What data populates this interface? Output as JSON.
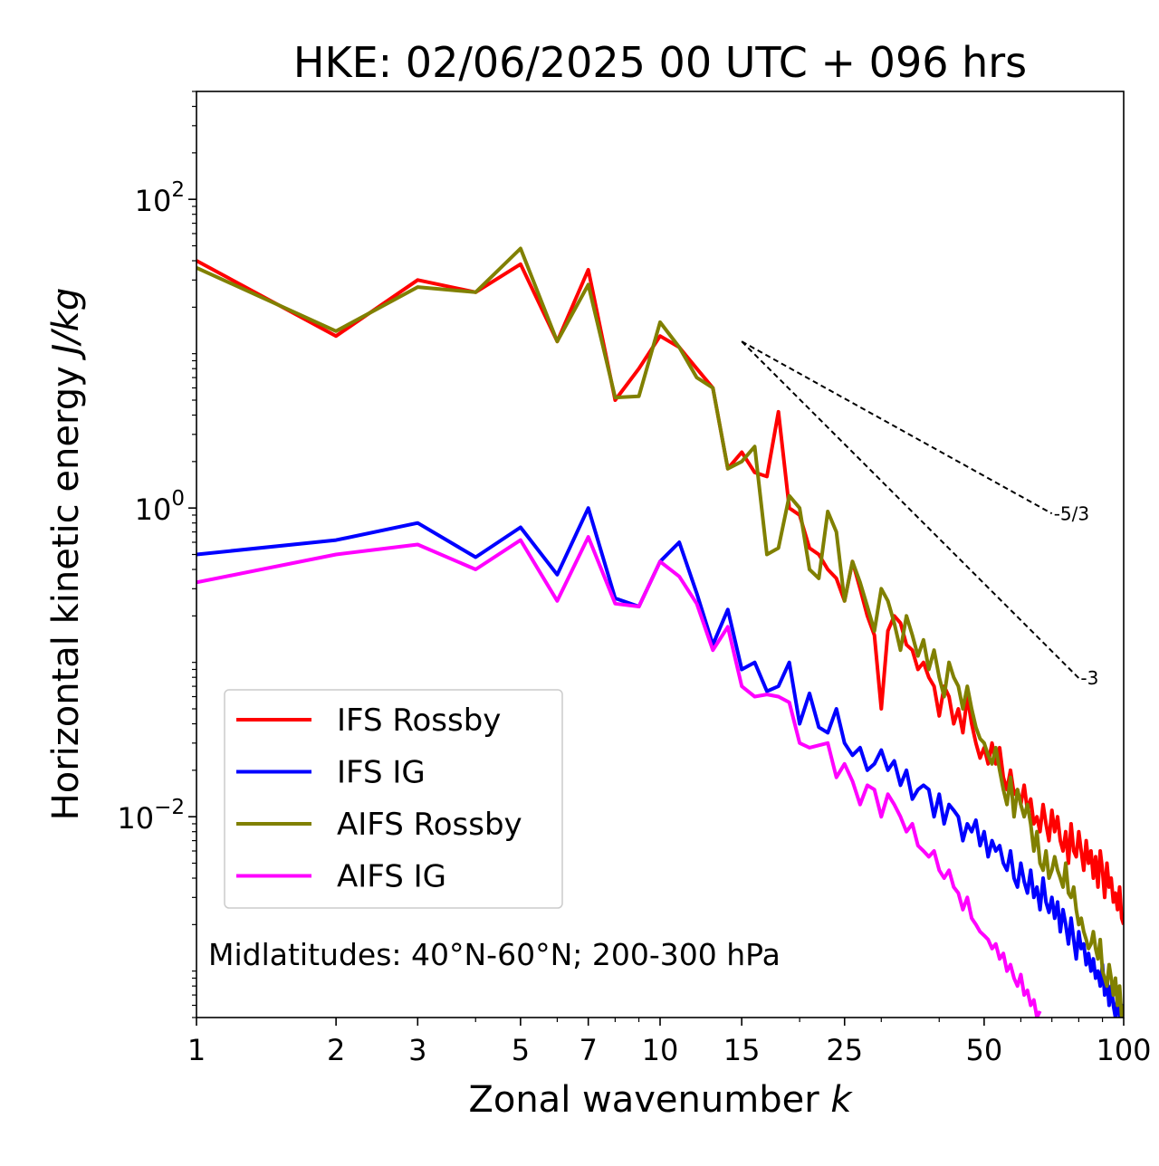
{
  "chart_data": {
    "type": "line",
    "title": "HKE: 02/06/2025 00 UTC + 096 hrs",
    "xlabel": "Zonal wavenumber",
    "xlabel_symbol": "k",
    "ylabel": "Horizontal kinetic energy",
    "ylabel_unit": "J/kg",
    "xscale": "log",
    "yscale": "log",
    "xlim": [
      1,
      100
    ],
    "ylim": [
      0.0005,
      500
    ],
    "x_ticks": [
      1,
      2,
      3,
      5,
      7,
      10,
      15,
      25,
      50,
      100
    ],
    "x_tick_labels": [
      "1",
      "2",
      "3",
      "5",
      "7",
      "10",
      "15",
      "25",
      "50",
      "100"
    ],
    "y_ticks": [
      {
        "value": 100,
        "base": "10",
        "exp": "2"
      },
      {
        "value": 1,
        "base": "10",
        "exp": "0"
      },
      {
        "value": 0.01,
        "base": "10",
        "exp": "−2"
      }
    ],
    "legend_position": "lower-left",
    "annotation": "Midlatitudes: 40°N-60°N; 200-300 hPa",
    "reference_lines": [
      {
        "label": "-5/3",
        "slope": -1.6667,
        "x": [
          15,
          70
        ],
        "y0": 12
      },
      {
        "label": "-3",
        "slope": -3,
        "x": [
          15,
          80
        ],
        "y0": 12
      }
    ],
    "series": [
      {
        "name": "IFS Rossby",
        "color": "#ff0000",
        "x": [
          1,
          2,
          3,
          4,
          5,
          6,
          7,
          8,
          9,
          10,
          11,
          12,
          13,
          14,
          15,
          16,
          17,
          18,
          19,
          20,
          21,
          22,
          23,
          24,
          25,
          26,
          27,
          28,
          29,
          30,
          31,
          32,
          33,
          34,
          35,
          36,
          37,
          38,
          39,
          40,
          41,
          42,
          43,
          44,
          45,
          46,
          47,
          48,
          49,
          50,
          51,
          52,
          53,
          54,
          55,
          56,
          57,
          58,
          59,
          60,
          61,
          62,
          63,
          64,
          65,
          66,
          67,
          68,
          69,
          70,
          71,
          72,
          73,
          74,
          75,
          76,
          77,
          78,
          79,
          80,
          81,
          82,
          83,
          84,
          85,
          86,
          87,
          88,
          89,
          90,
          91,
          92,
          93,
          94,
          95,
          96,
          97,
          98,
          99,
          100
        ],
        "y": [
          40,
          13,
          30,
          25,
          38,
          12,
          35,
          5,
          8,
          13,
          11,
          8,
          6,
          1.8,
          2.3,
          1.7,
          1.6,
          4.2,
          1.0,
          0.9,
          0.55,
          0.5,
          0.4,
          0.35,
          0.25,
          0.45,
          0.3,
          0.2,
          0.15,
          0.05,
          0.16,
          0.2,
          0.18,
          0.13,
          0.12,
          0.09,
          0.1,
          0.08,
          0.07,
          0.045,
          0.07,
          0.06,
          0.04,
          0.05,
          0.035,
          0.06,
          0.04,
          0.03,
          0.024,
          0.028,
          0.022,
          0.03,
          0.022,
          0.028,
          0.018,
          0.015,
          0.02,
          0.014,
          0.015,
          0.012,
          0.016,
          0.011,
          0.013,
          0.009,
          0.01,
          0.008,
          0.012,
          0.009,
          0.007,
          0.011,
          0.008,
          0.01,
          0.007,
          0.006,
          0.008,
          0.005,
          0.009,
          0.006,
          0.0055,
          0.008,
          0.006,
          0.0045,
          0.007,
          0.005,
          0.006,
          0.004,
          0.0055,
          0.0035,
          0.006,
          0.0045,
          0.003,
          0.005,
          0.0035,
          0.004,
          0.0028,
          0.0032,
          0.0025,
          0.0035,
          0.0022,
          0.002
        ]
      },
      {
        "name": "IFS IG",
        "color": "#0000ff",
        "x": [
          1,
          2,
          3,
          4,
          5,
          6,
          7,
          8,
          9,
          10,
          11,
          12,
          13,
          14,
          15,
          16,
          17,
          18,
          19,
          20,
          21,
          22,
          23,
          24,
          25,
          26,
          27,
          28,
          29,
          30,
          31,
          32,
          33,
          34,
          35,
          36,
          37,
          38,
          39,
          40,
          41,
          42,
          43,
          44,
          45,
          46,
          47,
          48,
          49,
          50,
          51,
          52,
          53,
          54,
          55,
          56,
          57,
          58,
          59,
          60,
          61,
          62,
          63,
          64,
          65,
          66,
          67,
          68,
          69,
          70,
          71,
          72,
          73,
          74,
          75,
          76,
          77,
          78,
          79,
          80,
          81,
          82,
          83,
          84,
          85,
          86,
          87,
          88,
          89,
          90,
          91,
          92,
          93,
          94,
          95,
          96,
          97,
          98,
          99,
          100
        ],
        "y": [
          0.5,
          0.62,
          0.8,
          0.48,
          0.75,
          0.37,
          1.0,
          0.26,
          0.23,
          0.45,
          0.6,
          0.28,
          0.13,
          0.22,
          0.09,
          0.1,
          0.065,
          0.07,
          0.1,
          0.04,
          0.063,
          0.038,
          0.035,
          0.05,
          0.03,
          0.025,
          0.028,
          0.02,
          0.022,
          0.027,
          0.02,
          0.023,
          0.016,
          0.02,
          0.013,
          0.015,
          0.016,
          0.015,
          0.01,
          0.014,
          0.009,
          0.012,
          0.011,
          0.01,
          0.007,
          0.009,
          0.008,
          0.0095,
          0.0065,
          0.008,
          0.0055,
          0.007,
          0.006,
          0.0065,
          0.005,
          0.0045,
          0.006,
          0.004,
          0.0035,
          0.005,
          0.0038,
          0.0032,
          0.0045,
          0.003,
          0.0035,
          0.0025,
          0.004,
          0.0028,
          0.0024,
          0.003,
          0.0022,
          0.0028,
          0.0018,
          0.0025,
          0.002,
          0.0015,
          0.0022,
          0.0016,
          0.0012,
          0.0018,
          0.0014,
          0.0015,
          0.0011,
          0.0013,
          0.001,
          0.0012,
          0.0009,
          0.001,
          0.0008,
          0.0011,
          0.0007,
          0.0009,
          0.0006,
          0.0008,
          0.0006,
          0.0005,
          0.0007,
          0.0005,
          0.0006,
          0.0005
        ]
      },
      {
        "name": "AIFS Rossby",
        "color": "#808000",
        "x": [
          1,
          2,
          3,
          4,
          5,
          6,
          7,
          8,
          9,
          10,
          11,
          12,
          13,
          14,
          15,
          16,
          17,
          18,
          19,
          20,
          21,
          22,
          23,
          24,
          25,
          26,
          27,
          28,
          29,
          30,
          31,
          32,
          33,
          34,
          35,
          36,
          37,
          38,
          39,
          40,
          41,
          42,
          43,
          44,
          45,
          46,
          47,
          48,
          49,
          50,
          51,
          52,
          53,
          54,
          55,
          56,
          57,
          58,
          59,
          60,
          61,
          62,
          63,
          64,
          65,
          66,
          67,
          68,
          69,
          70,
          71,
          72,
          73,
          74,
          75,
          76,
          77,
          78,
          79,
          80,
          81,
          82,
          83,
          84,
          85,
          86,
          87,
          88,
          89,
          90,
          91,
          92,
          93,
          94,
          95,
          96,
          97,
          98,
          99,
          100
        ],
        "y": [
          36,
          14,
          27,
          25,
          48,
          12,
          28,
          5.2,
          5.3,
          16,
          11,
          7,
          6,
          1.8,
          2.0,
          2.5,
          0.5,
          0.55,
          1.2,
          1.0,
          0.4,
          0.35,
          0.95,
          0.7,
          0.25,
          0.45,
          0.33,
          0.23,
          0.16,
          0.3,
          0.25,
          0.18,
          0.12,
          0.2,
          0.15,
          0.11,
          0.14,
          0.09,
          0.12,
          0.08,
          0.06,
          0.1,
          0.08,
          0.07,
          0.05,
          0.07,
          0.05,
          0.038,
          0.032,
          0.03,
          0.025,
          0.022,
          0.028,
          0.02,
          0.015,
          0.012,
          0.018,
          0.01,
          0.015,
          0.012,
          0.01,
          0.012,
          0.009,
          0.006,
          0.008,
          0.005,
          0.0045,
          0.006,
          0.004,
          0.0045,
          0.0055,
          0.0045,
          0.004,
          0.0035,
          0.005,
          0.0032,
          0.003,
          0.0035,
          0.0025,
          0.002,
          0.0022,
          0.0018,
          0.0016,
          0.0014,
          0.0015,
          0.0018,
          0.0014,
          0.0012,
          0.0016,
          0.001,
          0.0009,
          0.0008,
          0.0011,
          0.0009,
          0.0007,
          0.0009,
          0.0006,
          0.0008,
          0.0005,
          0.0006
        ]
      },
      {
        "name": "AIFS IG",
        "color": "#ff00ff",
        "x": [
          1,
          2,
          3,
          4,
          5,
          6,
          7,
          8,
          9,
          10,
          11,
          12,
          13,
          14,
          15,
          16,
          17,
          18,
          19,
          20,
          21,
          22,
          23,
          24,
          25,
          26,
          27,
          28,
          29,
          30,
          31,
          32,
          33,
          34,
          35,
          36,
          37,
          38,
          39,
          40,
          41,
          42,
          43,
          44,
          45,
          46,
          47,
          48,
          49,
          50,
          51,
          52,
          53,
          54,
          55,
          56,
          57,
          58,
          59,
          60,
          61,
          62,
          63,
          64,
          65,
          66,
          67,
          68,
          69,
          70,
          71,
          72,
          73,
          74,
          75,
          76,
          77,
          78,
          79,
          80,
          81,
          82,
          83,
          84,
          85,
          86,
          87,
          88,
          89,
          90,
          91,
          92,
          93,
          94,
          95,
          96,
          97,
          98,
          99,
          100
        ],
        "y": [
          0.33,
          0.5,
          0.58,
          0.4,
          0.62,
          0.25,
          0.65,
          0.24,
          0.23,
          0.45,
          0.36,
          0.24,
          0.12,
          0.17,
          0.07,
          0.06,
          0.062,
          0.06,
          0.055,
          0.03,
          0.028,
          0.029,
          0.03,
          0.018,
          0.022,
          0.017,
          0.012,
          0.016,
          0.015,
          0.01,
          0.014,
          0.012,
          0.01,
          0.008,
          0.009,
          0.0065,
          0.006,
          0.0055,
          0.006,
          0.0045,
          0.004,
          0.0045,
          0.0035,
          0.0032,
          0.0025,
          0.003,
          0.0022,
          0.002,
          0.0018,
          0.0017,
          0.0016,
          0.0014,
          0.0015,
          0.0012,
          0.0013,
          0.001,
          0.0011,
          0.0009,
          0.0008,
          0.00095,
          0.0007,
          0.00075,
          0.0006,
          0.00065,
          0.0005,
          0.00055,
          null,
          null,
          null,
          null,
          0.0005,
          null,
          null,
          null,
          null,
          null,
          null,
          null,
          null,
          null,
          null,
          null,
          null,
          null,
          null,
          null,
          null,
          null,
          null,
          null,
          null,
          null,
          null,
          null,
          null,
          null,
          null,
          null,
          null,
          null
        ]
      }
    ]
  }
}
